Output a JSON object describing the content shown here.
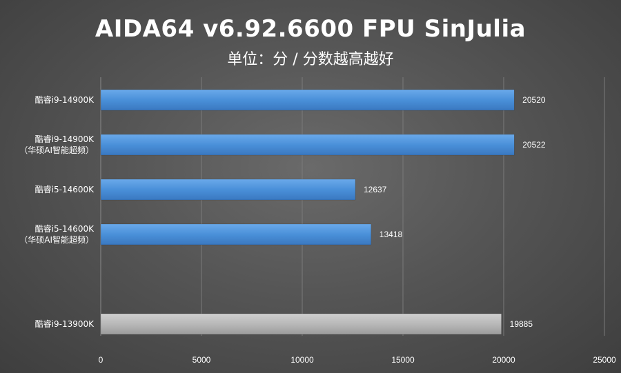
{
  "chart_data": {
    "type": "bar",
    "orientation": "horizontal",
    "title": "AIDA64 v6.92.6600 FPU SinJulia",
    "subtitle": "单位：分 / 分数越高越好",
    "categories": [
      [
        "酷睿i9-14900K"
      ],
      [
        "酷睿i9-14900K",
        "（华硕AI智能超频）"
      ],
      [
        "酷睿i5-14600K"
      ],
      [
        "酷睿i5-14600K",
        "（华硕AI智能超频）"
      ],
      [
        ""
      ],
      [
        "酷睿i9-13900K"
      ]
    ],
    "values": [
      20520,
      20522,
      12637,
      13418,
      null,
      19885
    ],
    "value_labels": [
      "20520",
      "20522",
      "12637",
      "13418",
      "",
      "19885"
    ],
    "bar_colors": [
      "#4a90d9",
      "#4a90d9",
      "#4a90d9",
      "#4a90d9",
      "",
      "#b4b4b4"
    ],
    "xlim": [
      0,
      25000
    ],
    "xticks": [
      "0",
      "5000",
      "10000",
      "15000",
      "20000",
      "25000"
    ],
    "grid": true,
    "legend": "none"
  }
}
